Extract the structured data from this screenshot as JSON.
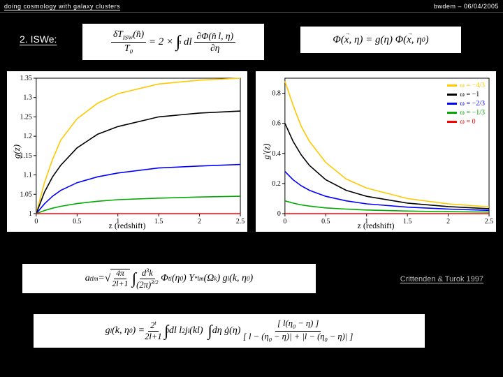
{
  "header": {
    "left": "doing cosmology with galaxy clusters",
    "right": "bwdem – 06/04/2005"
  },
  "section_label": "2. ISWe:",
  "citation": "Crittenden & Turok 1997",
  "formulas": {
    "top1": "δT_ISW(n̂)/T₀ = 2 × ∫ dl ∂Φ(n̂l, η)/∂η",
    "top2": "Φ(x⃗, η) = g(η) Φ(x⃗, η₀)",
    "bottom1": "aₗₘᵗ = √(4π/(2l+1)) ∫ d³k/(2π)^{3/2} Φᵢᵗ(η₀) Y*ₗₘ(Ω_k) gₗ(k, η₀)",
    "bottom2": "gₗ(k, η₀) = 2ᵗ/(2l+1) ∫₀ dl l² jₗ(kl) ∫ dη ġ(η) [l(η₀ − η)] / [l − (η₀ − η)| + |l − (η₀ − η)|]"
  },
  "chart_left": {
    "type": "line",
    "ylabel": "g(z)",
    "xlabel": "z (redshift)",
    "xlim": [
      0,
      2.5
    ],
    "ylim": [
      1.0,
      1.35
    ],
    "xticks": [
      0,
      0.5,
      1,
      1.5,
      2,
      2.5
    ],
    "yticks": [
      1,
      1.05,
      1.1,
      1.15,
      1.2,
      1.25,
      1.3,
      1.35
    ],
    "background_color": "#ffffff",
    "frame_color": "#000000",
    "line_width": 1.6,
    "series": [
      {
        "color": "#ffc800",
        "omega": "-4/3",
        "x": [
          0,
          0.1,
          0.2,
          0.3,
          0.5,
          0.75,
          1.0,
          1.5,
          2.0,
          2.5
        ],
        "y": [
          1.0,
          1.08,
          1.14,
          1.19,
          1.245,
          1.285,
          1.31,
          1.335,
          1.345,
          1.35
        ]
      },
      {
        "color": "#000000",
        "omega": "-1",
        "x": [
          0,
          0.1,
          0.2,
          0.3,
          0.5,
          0.75,
          1.0,
          1.5,
          2.0,
          2.5
        ],
        "y": [
          1.0,
          1.055,
          1.095,
          1.125,
          1.17,
          1.205,
          1.225,
          1.25,
          1.26,
          1.265
        ]
      },
      {
        "color": "#0000ff",
        "omega": "-2/3",
        "x": [
          0,
          0.1,
          0.2,
          0.3,
          0.5,
          0.75,
          1.0,
          1.5,
          2.0,
          2.5
        ],
        "y": [
          1.0,
          1.025,
          1.045,
          1.06,
          1.08,
          1.095,
          1.105,
          1.118,
          1.123,
          1.127
        ]
      },
      {
        "color": "#00aa00",
        "omega": "-1/3",
        "x": [
          0,
          0.1,
          0.2,
          0.3,
          0.5,
          0.75,
          1.0,
          1.5,
          2.0,
          2.5
        ],
        "y": [
          1.0,
          1.008,
          1.014,
          1.019,
          1.026,
          1.032,
          1.036,
          1.04,
          1.043,
          1.045
        ]
      },
      {
        "color": "#ff0000",
        "omega": "0",
        "x": [
          0,
          2.5
        ],
        "y": [
          1.0,
          1.0
        ]
      }
    ]
  },
  "chart_right": {
    "type": "line",
    "ylabel": "g'(z)",
    "xlabel": "z (redshift)",
    "xlim": [
      0,
      2.5
    ],
    "ylim": [
      0,
      0.9
    ],
    "xticks": [
      0,
      0.5,
      1,
      1.5,
      2,
      2.5
    ],
    "yticks": [
      0,
      0.2,
      0.4,
      0.6,
      0.8
    ],
    "background_color": "#ffffff",
    "frame_color": "#000000",
    "line_width": 1.6,
    "legend_pos": "top-right",
    "legend": [
      {
        "label": "ω = −4/3",
        "color": "#ffc800"
      },
      {
        "label": "ω = −1",
        "color": "#000000"
      },
      {
        "label": "ω = −2/3",
        "color": "#0000ff"
      },
      {
        "label": "ω = −1/3",
        "color": "#00aa00"
      },
      {
        "label": "ω = 0",
        "color": "#ff0000"
      }
    ],
    "series": [
      {
        "color": "#ffc800",
        "x": [
          0,
          0.1,
          0.2,
          0.3,
          0.5,
          0.75,
          1.0,
          1.5,
          2.0,
          2.5
        ],
        "y": [
          0.88,
          0.72,
          0.58,
          0.48,
          0.34,
          0.23,
          0.17,
          0.1,
          0.065,
          0.045
        ]
      },
      {
        "color": "#000000",
        "x": [
          0,
          0.1,
          0.2,
          0.3,
          0.5,
          0.75,
          1.0,
          1.5,
          2.0,
          2.5
        ],
        "y": [
          0.6,
          0.48,
          0.39,
          0.32,
          0.225,
          0.155,
          0.115,
          0.07,
          0.047,
          0.033
        ]
      },
      {
        "color": "#0000ff",
        "x": [
          0,
          0.1,
          0.2,
          0.3,
          0.5,
          0.75,
          1.0,
          1.5,
          2.0,
          2.5
        ],
        "y": [
          0.28,
          0.225,
          0.185,
          0.155,
          0.115,
          0.085,
          0.065,
          0.043,
          0.03,
          0.022
        ]
      },
      {
        "color": "#00aa00",
        "x": [
          0,
          0.1,
          0.2,
          0.3,
          0.5,
          0.75,
          1.0,
          1.5,
          2.0,
          2.5
        ],
        "y": [
          0.085,
          0.07,
          0.058,
          0.05,
          0.038,
          0.03,
          0.024,
          0.017,
          0.013,
          0.01
        ]
      },
      {
        "color": "#ff0000",
        "x": [
          0,
          2.5
        ],
        "y": [
          0.0,
          0.0
        ]
      }
    ]
  }
}
